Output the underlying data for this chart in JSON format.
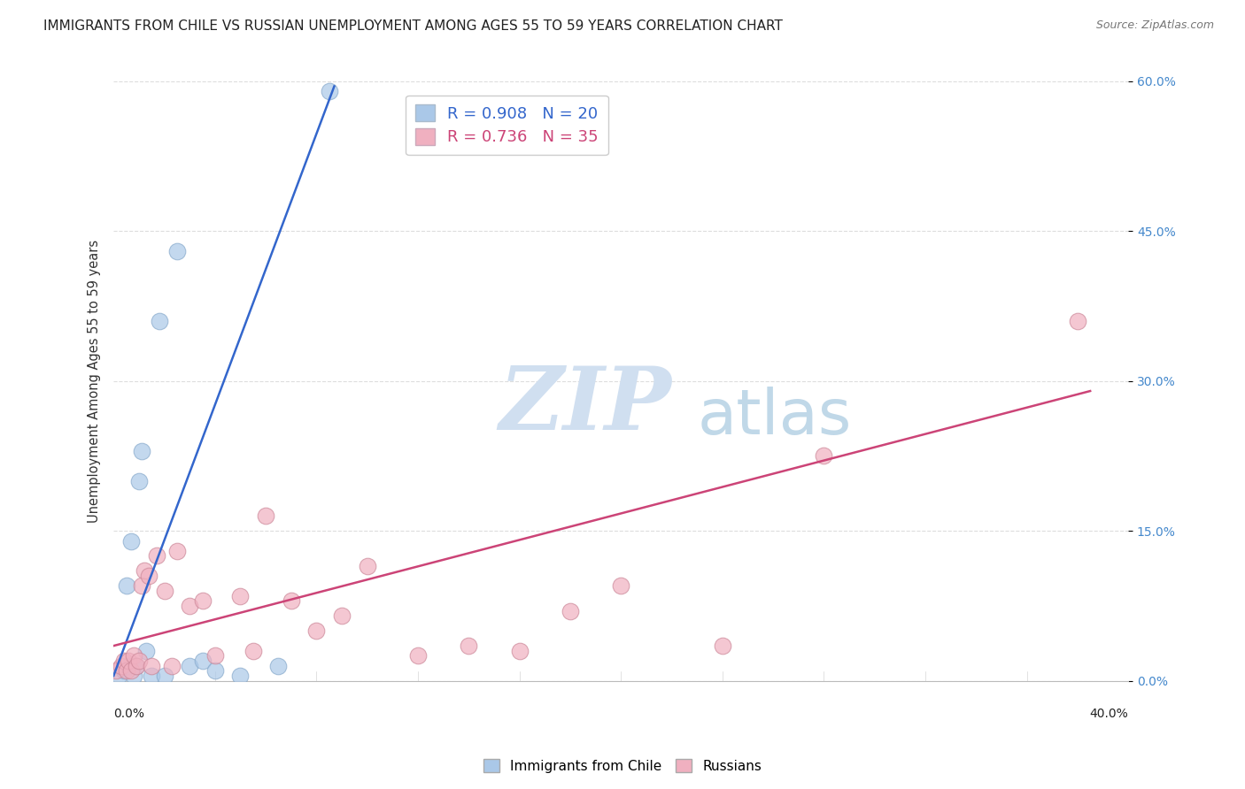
{
  "title": "IMMIGRANTS FROM CHILE VS RUSSIAN UNEMPLOYMENT AMONG AGES 55 TO 59 YEARS CORRELATION CHART",
  "source": "Source: ZipAtlas.com",
  "xlabel_bottom_left": "0.0%",
  "xlabel_bottom_right": "40.0%",
  "ylabel": "Unemployment Among Ages 55 to 59 years",
  "ylabel_right_ticks": [
    "0.0%",
    "15.0%",
    "30.0%",
    "45.0%",
    "60.0%"
  ],
  "ylabel_right_vals": [
    0.0,
    15.0,
    30.0,
    45.0,
    60.0
  ],
  "x_lim": [
    0.0,
    40.0
  ],
  "y_lim": [
    0.0,
    60.0
  ],
  "blue_R": 0.908,
  "blue_N": 20,
  "pink_R": 0.736,
  "pink_N": 35,
  "blue_label": "Immigrants from Chile",
  "pink_label": "Russians",
  "watermark_zip": "ZIP",
  "watermark_atlas": "atlas",
  "watermark_color_zip": "#d0dff0",
  "watermark_color_atlas": "#c0d8e8",
  "blue_color": "#aac8e8",
  "blue_edge_color": "#88aacc",
  "blue_line_color": "#3366cc",
  "pink_color": "#f0b0c0",
  "pink_edge_color": "#cc8899",
  "pink_line_color": "#cc4477",
  "blue_scatter_x": [
    0.2,
    0.4,
    0.5,
    0.6,
    0.7,
    0.8,
    0.9,
    1.0,
    1.1,
    1.3,
    1.5,
    1.8,
    2.0,
    2.5,
    3.0,
    3.5,
    4.0,
    5.0,
    6.5,
    8.5
  ],
  "blue_scatter_y": [
    0.5,
    1.0,
    9.5,
    1.5,
    14.0,
    0.5,
    1.5,
    20.0,
    23.0,
    3.0,
    0.5,
    36.0,
    0.5,
    43.0,
    1.5,
    2.0,
    1.0,
    0.5,
    1.5,
    59.0
  ],
  "pink_scatter_x": [
    0.1,
    0.3,
    0.4,
    0.5,
    0.6,
    0.7,
    0.8,
    0.9,
    1.0,
    1.1,
    1.2,
    1.4,
    1.5,
    1.7,
    2.0,
    2.3,
    2.5,
    3.0,
    3.5,
    4.0,
    5.0,
    5.5,
    6.0,
    7.0,
    8.0,
    9.0,
    10.0,
    12.0,
    14.0,
    16.0,
    18.0,
    20.0,
    24.0,
    28.0,
    38.0
  ],
  "pink_scatter_y": [
    1.0,
    1.5,
    2.0,
    1.0,
    2.0,
    1.0,
    2.5,
    1.5,
    2.0,
    9.5,
    11.0,
    10.5,
    1.5,
    12.5,
    9.0,
    1.5,
    13.0,
    7.5,
    8.0,
    2.5,
    8.5,
    3.0,
    16.5,
    8.0,
    5.0,
    6.5,
    11.5,
    2.5,
    3.5,
    3.0,
    7.0,
    9.5,
    3.5,
    22.5,
    36.0
  ],
  "blue_line_x": [
    0.0,
    8.7
  ],
  "blue_line_y": [
    0.5,
    59.5
  ],
  "pink_line_x": [
    0.0,
    38.5
  ],
  "pink_line_y": [
    3.5,
    29.0
  ],
  "grid_color": "#dddddd",
  "bg_color": "#ffffff",
  "title_fontsize": 11,
  "axis_label_fontsize": 10.5,
  "tick_fontsize": 10,
  "legend_fontsize": 13
}
